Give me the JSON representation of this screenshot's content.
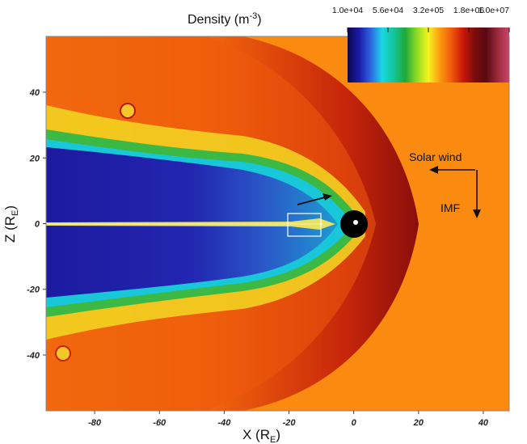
{
  "chart_data": {
    "type": "heatmap",
    "title": "Density (m",
    "title_sup": "-3",
    "title_end": ")",
    "xlabel": "X (R",
    "xlabel_sub": "E",
    "xlabel_end": ")",
    "ylabel": "Z (R",
    "ylabel_sub": "E",
    "ylabel_end": ")",
    "xlim": [
      -95,
      48
    ],
    "ylim": [
      -57,
      57
    ],
    "xticks": [
      -80,
      -60,
      -40,
      -20,
      0,
      20,
      40
    ],
    "yticks": [
      40,
      20,
      0,
      -20,
      -40
    ],
    "colorbar": {
      "scale": "log",
      "ticks": [
        "1.0e+04",
        "5.6e+04",
        "3.2e+05",
        "1.8e+06",
        "1.0e+07"
      ],
      "colors": [
        "#0d0a4a",
        "#1c1aa8",
        "#2f64e0",
        "#19d8e6",
        "#14c49a",
        "#1fa83a",
        "#8fdc25",
        "#f5f51e",
        "#fb9a10",
        "#f05a0c",
        "#c8180a",
        "#7c0d0a",
        "#5a0a14",
        "#9c2a3c",
        "#c8486a"
      ]
    },
    "annotations": {
      "solar_wind": "Solar wind",
      "imf": "IMF"
    },
    "colors": {
      "solar_wind_orange": "#fb8a10",
      "lobe_blue": "#1e22a8",
      "planet": "#000000"
    }
  }
}
